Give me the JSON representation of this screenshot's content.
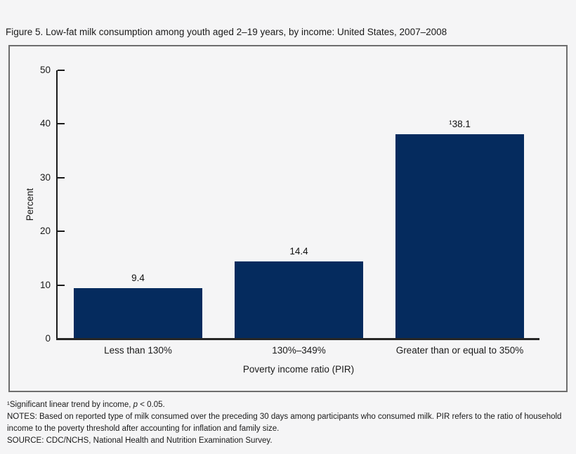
{
  "figure": {
    "title": "Figure 5. Low-fat milk consumption among youth aged 2–19 years, by income: United States, 2007–2008"
  },
  "chart_data": {
    "type": "bar",
    "title": "Figure 5. Low-fat milk consumption among youth aged 2–19 years, by income: United States, 2007–2008",
    "categories": [
      "Less than 130%",
      "130%–349%",
      "Greater than or equal to 350%"
    ],
    "values": [
      9.4,
      14.4,
      38.1
    ],
    "value_labels": [
      "9.4",
      "14.4",
      "¹38.1"
    ],
    "xlabel": "Poverty income ratio (PIR)",
    "ylabel": "Percent",
    "ylim": [
      0,
      50
    ],
    "yticks": [
      0,
      10,
      20,
      30,
      40,
      50
    ],
    "grid": false,
    "legend": false,
    "bar_color": "#052b5e",
    "background_color": "#f5f5f6"
  },
  "footnotes": {
    "fn1_prefix": "¹Significant linear trend by income, ",
    "fn1_italic": "p",
    "fn1_suffix": " < 0.05.",
    "notes": "NOTES: Based on reported type of milk consumed over the preceding 30 days among participants who consumed milk. PIR refers to the ratio of household income to the poverty threshold after accounting for inflation and family size.",
    "source": "SOURCE: CDC/NCHS, National Health and Nutrition Examination Survey."
  }
}
